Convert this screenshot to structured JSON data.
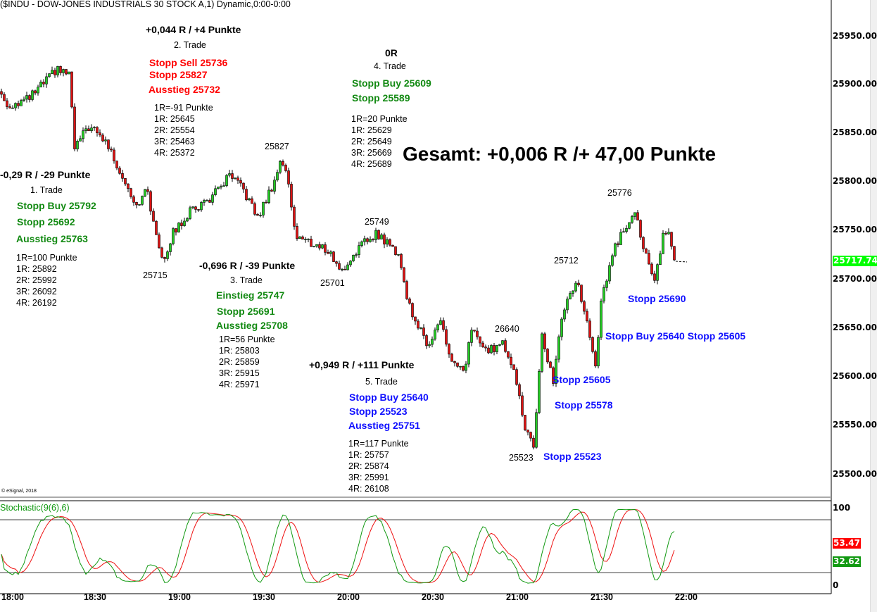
{
  "title": "($INDU - DOW-JONES INDUSTRIALS 30 STOCK A,1) Dynamic,0:00-0:00",
  "copyright": "© eSignal, 2018",
  "total": "Gesamt: +0,006 R /+ 47,00 Punkte",
  "price_ticks": [
    "25950.00",
    "25900.00",
    "25850.00",
    "25800.00",
    "25750.00",
    "25700.00",
    "25650.00",
    "25600.00",
    "25550.00",
    "25500.00"
  ],
  "last_price": "25717.74",
  "stoch": {
    "label": "Stochastic(9(6),6)",
    "ticks": [
      "100",
      "0"
    ],
    "k_value": "32.62",
    "d_value": "53.47",
    "levels": [
      80,
      20
    ]
  },
  "time_ticks": [
    "18:00",
    "18:30",
    "19:00",
    "19:30",
    "20:00",
    "20:30",
    "21:00",
    "21:30",
    "22:00"
  ],
  "trades": {
    "t1": {
      "result": "-0,29 R / -29 Punkte",
      "name": "1. Trade",
      "orders": [
        "Stopp Buy 25792",
        "Stopp 25692",
        "Ausstieg 25763"
      ],
      "targets": [
        "1R=100 Punkte",
        "1R: 25892",
        "2R: 25992",
        "3R: 26092",
        "4R: 26192"
      ]
    },
    "t2": {
      "result": "+0,044 R / +4 Punkte",
      "name": "2. Trade",
      "orders": [
        "Stopp Sell 25736",
        "Stopp 25827",
        "Ausstieg 25732"
      ],
      "targets": [
        "1R=-91 Punkte",
        "1R: 25645",
        "2R: 25554",
        "3R: 25463",
        "4R: 25372"
      ]
    },
    "t3": {
      "result": "-0,696 R / -39 Punkte",
      "name": "3. Trade",
      "orders": [
        "Einstieg 25747",
        "Stopp 25691",
        "Ausstieg 25708"
      ],
      "targets": [
        "1R=56 Punkte",
        "1R: 25803",
        "2R: 25859",
        "3R: 25915",
        "4R: 25971"
      ]
    },
    "t4": {
      "result": "0R",
      "name": "4. Trade",
      "orders": [
        "Stopp Buy 25609",
        "Stopp 25589"
      ],
      "targets": [
        "1R=20 Punkte",
        "1R: 25629",
        "2R: 25649",
        "3R: 25669",
        "4R: 25689"
      ]
    },
    "t5": {
      "result": "+0,949 R / +111 Punkte",
      "name": "5. Trade",
      "orders": [
        "Stopp Buy 25640",
        "Stopp 25523",
        "Ausstieg 25751"
      ],
      "targets": [
        "1R=117 Punkte",
        "1R: 25757",
        "2R: 25874",
        "3R: 25991",
        "4R: 26108"
      ]
    }
  },
  "swing_labels": [
    "25827",
    "25715",
    "25749",
    "25701",
    "26640",
    "25523",
    "25712",
    "25776"
  ],
  "chart_stops": [
    "Stopp 25690",
    "Stopp Buy 25640 Stopp 25605",
    "Stopp 25605",
    "Stopp 25578",
    "Stopp 25523"
  ],
  "colors": {
    "up": "#22cc22",
    "down": "#dd1111",
    "k_line": "#119911",
    "d_line": "#ee1111",
    "last_badge": "#00ff00"
  },
  "chart_data": {
    "type": "candlestick",
    "title": "$INDU - DOW-JONES INDUSTRIALS 30 STOCK A, 1 min",
    "x_unit": "minutes after 18:00",
    "ylim": [
      25480,
      25980
    ],
    "price_anchors": [
      [
        -4.5,
        25893
      ],
      [
        -2,
        25878
      ],
      [
        5.5,
        25885
      ],
      [
        10.5,
        25900
      ],
      [
        15.5,
        25915
      ],
      [
        20,
        25911
      ],
      [
        22,
        25835
      ],
      [
        27,
        25857
      ],
      [
        33,
        25842
      ],
      [
        39,
        25806
      ],
      [
        44,
        25777
      ],
      [
        48,
        25792
      ],
      [
        50,
        25756
      ],
      [
        53.5,
        25720
      ],
      [
        57,
        25748
      ],
      [
        63,
        25770
      ],
      [
        70.5,
        25784
      ],
      [
        77,
        25806
      ],
      [
        82,
        25792
      ],
      [
        87,
        25763
      ],
      [
        92,
        25795
      ],
      [
        95.5,
        25824
      ],
      [
        98,
        25799
      ],
      [
        100.5,
        25745
      ],
      [
        105.5,
        25738
      ],
      [
        112,
        25730
      ],
      [
        117,
        25708
      ],
      [
        122,
        25730
      ],
      [
        129,
        25748
      ],
      [
        137,
        25727
      ],
      [
        140.5,
        25676
      ],
      [
        147,
        25633
      ],
      [
        152,
        25658
      ],
      [
        155.5,
        25618
      ],
      [
        160.5,
        25602
      ],
      [
        163,
        25651
      ],
      [
        168,
        25626
      ],
      [
        174,
        25635
      ],
      [
        178,
        25611
      ],
      [
        182,
        25546
      ],
      [
        185,
        25530
      ],
      [
        188,
        25640
      ],
      [
        192,
        25597
      ],
      [
        195.5,
        25669
      ],
      [
        200.5,
        25700
      ],
      [
        204,
        25654
      ],
      [
        207,
        25609
      ],
      [
        209,
        25676
      ],
      [
        213,
        25727
      ],
      [
        219,
        25763
      ],
      [
        221,
        25772
      ],
      [
        224,
        25734
      ],
      [
        228,
        25695
      ],
      [
        231,
        25748
      ],
      [
        233,
        25748
      ],
      [
        235,
        25718
      ]
    ],
    "stochastic_params": [
      9,
      6,
      6
    ]
  }
}
